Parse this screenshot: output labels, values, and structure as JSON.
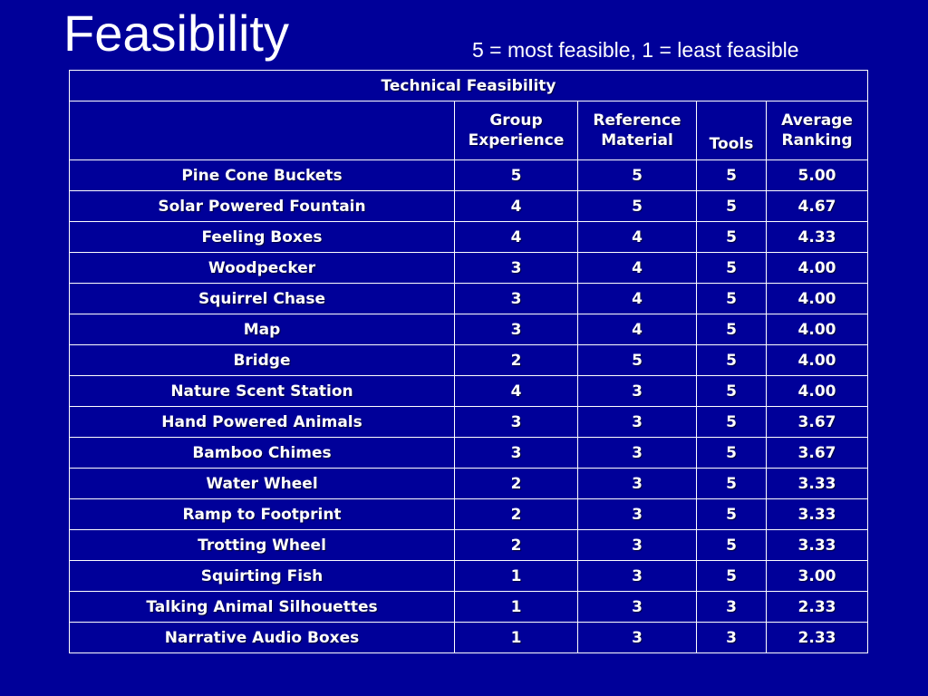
{
  "title": "Feasibility",
  "subtitle": "5 = most feasible, 1 = least feasible",
  "table": {
    "caption": "Technical Feasibility",
    "headers": [
      {
        "line1": "Group",
        "line2": "Experience"
      },
      {
        "line1": "Reference",
        "line2": "Material"
      },
      {
        "line1": "Tools",
        "line2": ""
      },
      {
        "line1": "Average",
        "line2": "Ranking"
      }
    ],
    "rows": [
      {
        "name": "Pine Cone Buckets",
        "group": "5",
        "reference": "5",
        "tools": "5",
        "average": "5.00"
      },
      {
        "name": "Solar Powered Fountain",
        "group": "4",
        "reference": "5",
        "tools": "5",
        "average": "4.67"
      },
      {
        "name": "Feeling Boxes",
        "group": "4",
        "reference": "4",
        "tools": "5",
        "average": "4.33"
      },
      {
        "name": "Woodpecker",
        "group": "3",
        "reference": "4",
        "tools": "5",
        "average": "4.00"
      },
      {
        "name": "Squirrel Chase",
        "group": "3",
        "reference": "4",
        "tools": "5",
        "average": "4.00"
      },
      {
        "name": "Map",
        "group": "3",
        "reference": "4",
        "tools": "5",
        "average": "4.00"
      },
      {
        "name": "Bridge",
        "group": "2",
        "reference": "5",
        "tools": "5",
        "average": "4.00"
      },
      {
        "name": "Nature Scent Station",
        "group": "4",
        "reference": "3",
        "tools": "5",
        "average": "4.00"
      },
      {
        "name": "Hand Powered Animals",
        "group": "3",
        "reference": "3",
        "tools": "5",
        "average": "3.67"
      },
      {
        "name": "Bamboo Chimes",
        "group": "3",
        "reference": "3",
        "tools": "5",
        "average": "3.67"
      },
      {
        "name": "Water Wheel",
        "group": "2",
        "reference": "3",
        "tools": "5",
        "average": "3.33"
      },
      {
        "name": "Ramp to Footprint",
        "group": "2",
        "reference": "3",
        "tools": "5",
        "average": "3.33"
      },
      {
        "name": "Trotting Wheel",
        "group": "2",
        "reference": "3",
        "tools": "5",
        "average": "3.33"
      },
      {
        "name": "Squirting Fish",
        "group": "1",
        "reference": "3",
        "tools": "5",
        "average": "3.00"
      },
      {
        "name": "Talking Animal Silhouettes",
        "group": "1",
        "reference": "3",
        "tools": "3",
        "average": "2.33"
      },
      {
        "name": "Narrative Audio Boxes",
        "group": "1",
        "reference": "3",
        "tools": "3",
        "average": "2.33"
      }
    ]
  },
  "colors": {
    "background": "#000099",
    "text": "#ffffff",
    "border": "#ffffff"
  }
}
